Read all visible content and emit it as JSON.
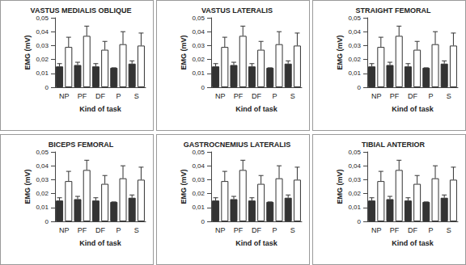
{
  "chart_data": [
    {
      "type": "bar",
      "title": "VASTUS MEDIALIS OBLIQUE",
      "xlabel": "Kind of task",
      "ylabel": "EMG (mV)",
      "categories": [
        "NP",
        "PF",
        "DF",
        "P",
        "S"
      ],
      "series": [
        {
          "color": "#333333",
          "values": [
            0.015,
            0.016,
            0.015,
            0.014,
            0.017
          ],
          "errors": [
            0.002,
            0.002,
            0.002,
            0.0,
            0.002
          ]
        },
        {
          "color": "#ffffff",
          "values": [
            0.029,
            0.037,
            0.027,
            0.031,
            0.03
          ],
          "errors": [
            0.007,
            0.007,
            0.006,
            0.009,
            0.009
          ]
        }
      ],
      "ylim": [
        0,
        0.05
      ],
      "yticks": [
        0,
        {
          "value": 0.01,
          "label": "0,01"
        },
        {
          "value": 0.02,
          "label": "0,02"
        },
        {
          "value": 0.03,
          "label": "0,03"
        },
        {
          "value": 0.04,
          "label": "0,04"
        },
        {
          "value": 0.05,
          "label": "0,05"
        }
      ],
      "grid": false
    },
    {
      "type": "bar",
      "title": "VASTUS LATERALIS",
      "xlabel": "Kind of task",
      "ylabel": "EMG (mV)",
      "categories": [
        "NP",
        "PF",
        "DF",
        "P",
        "S"
      ],
      "series": [
        {
          "color": "#333333",
          "values": [
            0.015,
            0.016,
            0.015,
            0.014,
            0.017
          ],
          "errors": [
            0.002,
            0.002,
            0.002,
            0.0,
            0.002
          ]
        },
        {
          "color": "#ffffff",
          "values": [
            0.029,
            0.037,
            0.027,
            0.031,
            0.03
          ],
          "errors": [
            0.007,
            0.007,
            0.006,
            0.009,
            0.009
          ]
        }
      ],
      "ylim": [
        0,
        0.05
      ],
      "yticks": [
        0,
        {
          "value": 0.01,
          "label": "0,01"
        },
        {
          "value": 0.02,
          "label": "0,02"
        },
        {
          "value": 0.03,
          "label": "0,03"
        },
        {
          "value": 0.04,
          "label": "0,04"
        },
        {
          "value": 0.05,
          "label": "0,05"
        }
      ],
      "grid": false
    },
    {
      "type": "bar",
      "title": "STRAIGHT FEMORAL",
      "xlabel": "Kind of task",
      "ylabel": "EMG (mV)",
      "categories": [
        "NP",
        "PF",
        "DF",
        "P",
        "S"
      ],
      "series": [
        {
          "color": "#333333",
          "values": [
            0.015,
            0.016,
            0.015,
            0.014,
            0.017
          ],
          "errors": [
            0.002,
            0.002,
            0.002,
            0.0,
            0.002
          ]
        },
        {
          "color": "#ffffff",
          "values": [
            0.029,
            0.037,
            0.027,
            0.031,
            0.03
          ],
          "errors": [
            0.007,
            0.007,
            0.006,
            0.009,
            0.009
          ]
        }
      ],
      "ylim": [
        0,
        0.05
      ],
      "yticks": [
        0,
        {
          "value": 0.01,
          "label": "0,01"
        },
        {
          "value": 0.02,
          "label": "0,02"
        },
        {
          "value": 0.03,
          "label": "0,03"
        },
        {
          "value": 0.04,
          "label": "0,04"
        },
        {
          "value": 0.05,
          "label": "0,05"
        }
      ],
      "grid": false
    },
    {
      "type": "bar",
      "title": "BICEPS FEMORAL",
      "xlabel": "Kind of task",
      "ylabel": "EMG (mV)",
      "categories": [
        "NP",
        "PF",
        "DF",
        "P",
        "S"
      ],
      "series": [
        {
          "color": "#333333",
          "values": [
            0.015,
            0.016,
            0.015,
            0.014,
            0.017
          ],
          "errors": [
            0.002,
            0.002,
            0.002,
            0.0,
            0.002
          ]
        },
        {
          "color": "#ffffff",
          "values": [
            0.029,
            0.037,
            0.027,
            0.031,
            0.03
          ],
          "errors": [
            0.007,
            0.007,
            0.006,
            0.009,
            0.009
          ]
        }
      ],
      "ylim": [
        0,
        0.05
      ],
      "yticks": [
        0,
        {
          "value": 0.01,
          "label": "0,01"
        },
        {
          "value": 0.02,
          "label": "0,02"
        },
        {
          "value": 0.03,
          "label": "0,03"
        },
        {
          "value": 0.04,
          "label": "0,04"
        },
        {
          "value": 0.05,
          "label": "0,05"
        }
      ],
      "grid": false
    },
    {
      "type": "bar",
      "title": "GASTROCNEMIUS LATERALIS",
      "xlabel": "Kind of task",
      "ylabel": "EMG (mV)",
      "categories": [
        "NP",
        "PF",
        "DF",
        "P",
        "S"
      ],
      "series": [
        {
          "color": "#333333",
          "values": [
            0.015,
            0.016,
            0.015,
            0.014,
            0.017
          ],
          "errors": [
            0.002,
            0.002,
            0.002,
            0.0,
            0.002
          ]
        },
        {
          "color": "#ffffff",
          "values": [
            0.029,
            0.037,
            0.027,
            0.031,
            0.03
          ],
          "errors": [
            0.007,
            0.007,
            0.006,
            0.009,
            0.009
          ]
        }
      ],
      "ylim": [
        0,
        0.05
      ],
      "yticks": [
        0,
        {
          "value": 0.01,
          "label": "0,01"
        },
        {
          "value": 0.02,
          "label": "0,02"
        },
        {
          "value": 0.03,
          "label": "0,03"
        },
        {
          "value": 0.04,
          "label": "0,04"
        },
        {
          "value": 0.05,
          "label": "0,05"
        }
      ],
      "grid": false
    },
    {
      "type": "bar",
      "title": "TIBIAL ANTERIOR",
      "xlabel": "Kind of task",
      "ylabel": "EMG (mV)",
      "categories": [
        "NP",
        "PF",
        "DF",
        "P",
        "S"
      ],
      "series": [
        {
          "color": "#333333",
          "values": [
            0.015,
            0.016,
            0.015,
            0.014,
            0.017
          ],
          "errors": [
            0.002,
            0.002,
            0.002,
            0.0,
            0.002
          ]
        },
        {
          "color": "#ffffff",
          "values": [
            0.029,
            0.037,
            0.027,
            0.031,
            0.03
          ],
          "errors": [
            0.007,
            0.007,
            0.006,
            0.009,
            0.009
          ]
        }
      ],
      "ylim": [
        0,
        0.05
      ],
      "yticks": [
        0,
        {
          "value": 0.01,
          "label": "0,01"
        },
        {
          "value": 0.02,
          "label": "0,02"
        },
        {
          "value": 0.03,
          "label": "0,03"
        },
        {
          "value": 0.04,
          "label": "0,04"
        },
        {
          "value": 0.05,
          "label": "0,05"
        }
      ],
      "grid": false
    }
  ]
}
